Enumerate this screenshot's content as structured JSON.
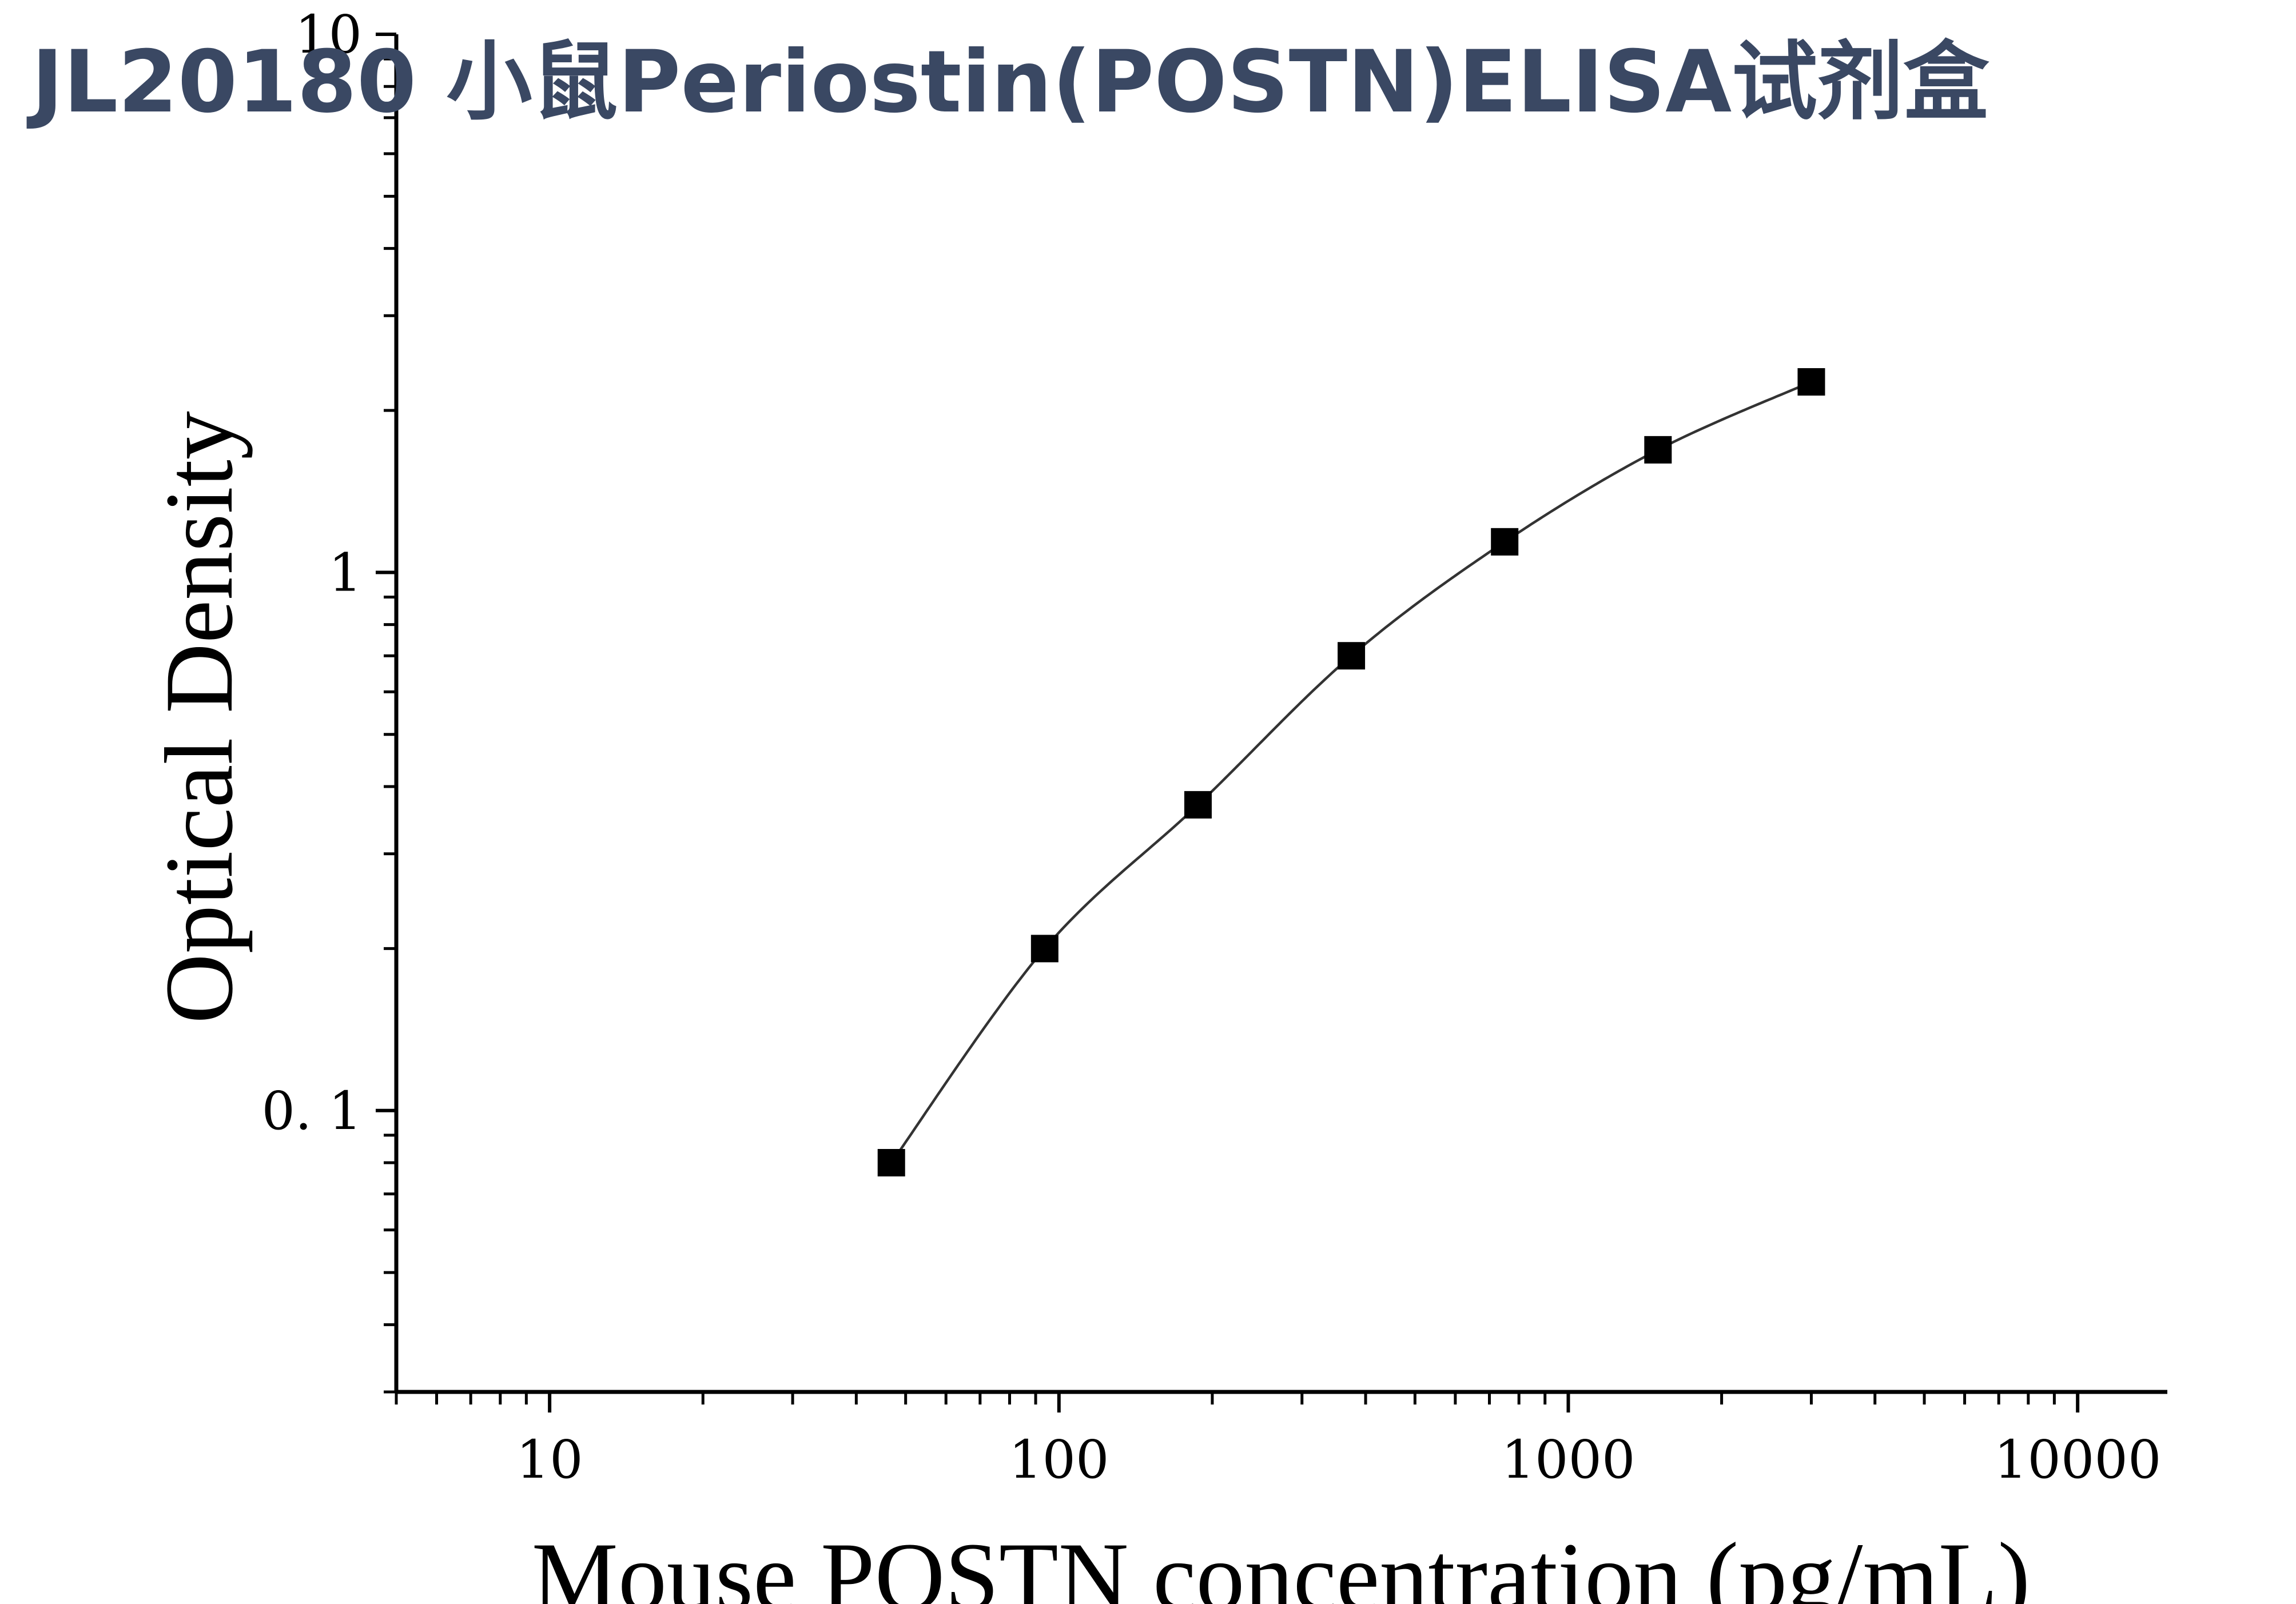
{
  "chart_data": {
    "type": "scatter",
    "title": "JL20180 小鼠Periostin(POSTN)ELISA试剂盒",
    "xlabel": "Mouse POSTN concentration (pg/mL)",
    "ylabel": "Optical Density",
    "xscale": "log",
    "yscale": "log",
    "xlim": [
      5,
      15000
    ],
    "ylim": [
      0.03,
      10
    ],
    "x_ticks": [
      10,
      100,
      1000,
      10000
    ],
    "x_tick_labels": [
      "10",
      "100",
      "1000",
      "10000"
    ],
    "y_ticks": [
      0.1,
      1,
      10
    ],
    "y_tick_labels": [
      "0. 1",
      "1",
      "10"
    ],
    "grid": false,
    "legend": false,
    "marker": "square",
    "series": [
      {
        "x": [
          46.875,
          93.75,
          187.5,
          375,
          750,
          1500,
          3000
        ],
        "y": [
          0.08,
          0.2,
          0.37,
          0.7,
          1.14,
          1.69,
          2.26
        ]
      }
    ],
    "fit_curve": true
  }
}
